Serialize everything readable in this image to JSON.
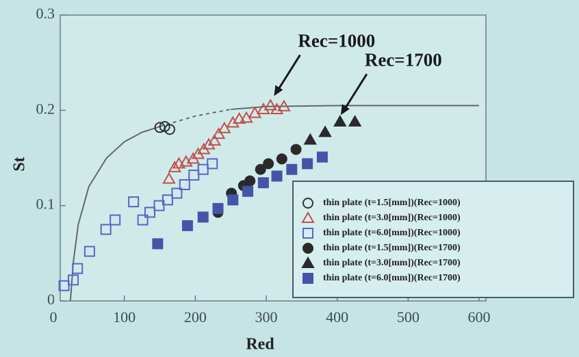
{
  "chart_data": {
    "type": "scatter",
    "x_label": "Red",
    "y_label": "St",
    "xlim": [
      0,
      600
    ],
    "ylim": [
      0,
      0.3
    ],
    "xticks": [
      0,
      100,
      200,
      300,
      400,
      500,
      600
    ],
    "yticks": [
      0,
      0.1,
      0.2,
      0.3
    ],
    "legend": "lower right",
    "series": [
      {
        "name": "thin plate (t=1.5[mm])(Rec=1000)",
        "color": "#333333",
        "marker": "circle",
        "filled": false,
        "x": [
          150,
          157,
          164
        ],
        "values": [
          0.182,
          0.183,
          0.18
        ]
      },
      {
        "name": "thin plate (t=3.0[mm])(Rec=1000)",
        "color": "#c0504d",
        "marker": "triangle",
        "filled": false,
        "x": [
          163,
          171,
          177,
          187,
          197,
          204,
          212,
          219,
          227,
          233,
          241,
          253,
          262,
          272,
          284,
          296,
          306,
          315,
          325
        ],
        "values": [
          0.128,
          0.14,
          0.144,
          0.146,
          0.149,
          0.154,
          0.159,
          0.164,
          0.168,
          0.175,
          0.181,
          0.187,
          0.191,
          0.192,
          0.197,
          0.201,
          0.205,
          0.201,
          0.204
        ]
      },
      {
        "name": "thin plate (t=6.0[mm])(Rec=1000)",
        "color": "#5566c8",
        "marker": "square",
        "filled": false,
        "x": [
          15,
          28,
          34,
          51,
          74,
          87,
          113,
          126,
          136,
          149,
          161,
          174,
          185,
          198,
          211,
          224
        ],
        "values": [
          0.016,
          0.022,
          0.034,
          0.052,
          0.075,
          0.085,
          0.104,
          0.085,
          0.093,
          0.1,
          0.106,
          0.113,
          0.122,
          0.132,
          0.138,
          0.144
        ]
      },
      {
        "name": "thin plate (t=1.5[mm])(Rec=1700)",
        "color": "#2a2a2a",
        "marker": "circle",
        "filled": true,
        "x": [
          232,
          251,
          268,
          277,
          292,
          303,
          322,
          342
        ],
        "values": [
          0.093,
          0.113,
          0.121,
          0.126,
          0.138,
          0.144,
          0.149,
          0.159
        ]
      },
      {
        "name": "thin plate (t=3.0[mm])(Rec=1700)",
        "color": "#2a2a2a",
        "marker": "triangle",
        "filled": true,
        "x": [
          362,
          383,
          404,
          425
        ],
        "values": [
          0.169,
          0.177,
          0.188,
          0.188
        ]
      },
      {
        "name": "thin plate (t=6.0[mm])(Rec=1700)",
        "color": "#4455a8",
        "marker": "square",
        "filled": true,
        "x": [
          147,
          189,
          211,
          232,
          253,
          274,
          296,
          315,
          336,
          358,
          379
        ],
        "values": [
          0.06,
          0.079,
          0.088,
          0.097,
          0.106,
          0.115,
          0.124,
          0.131,
          0.138,
          0.144,
          0.151
        ]
      }
    ],
    "curves": [
      {
        "style": "solid",
        "color": "#666666",
        "x": [
          24,
          28,
          35,
          50,
          75,
          100,
          125,
          150
        ],
        "values": [
          0,
          0.04,
          0.08,
          0.12,
          0.15,
          0.167,
          0.177,
          0.183
        ]
      },
      {
        "style": "dashed",
        "color": "#666666",
        "x": [
          150,
          200,
          250
        ],
        "values": [
          0.183,
          0.194,
          0.201
        ]
      },
      {
        "style": "solid",
        "color": "#666666",
        "x": [
          250,
          300,
          400,
          500,
          600
        ],
        "values": [
          0.201,
          0.204,
          0.205,
          0.205,
          0.205
        ]
      }
    ],
    "annotations": [
      {
        "text": "Rec=1000",
        "x": 311,
        "y": 0.215
      },
      {
        "text": "Rec=1700",
        "x": 405,
        "y": 0.195
      }
    ]
  }
}
